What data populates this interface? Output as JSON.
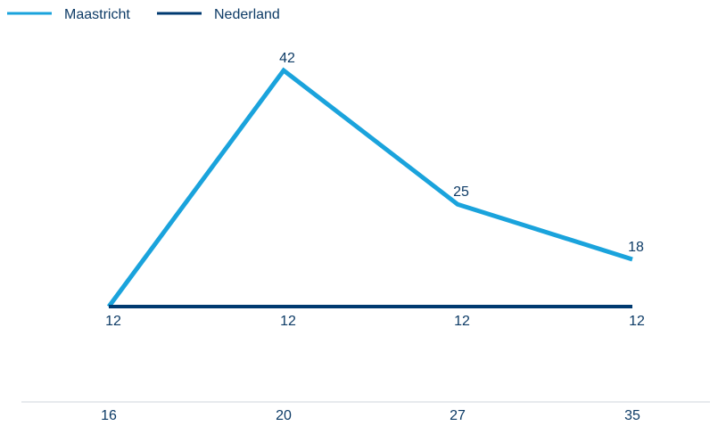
{
  "chart_data": {
    "type": "line",
    "x": [
      "16",
      "20",
      "27",
      "35"
    ],
    "series": [
      {
        "name": "Maastricht",
        "values": [
          12,
          42,
          25,
          18
        ],
        "color": "#1aa3dc",
        "labels": [
          "",
          "42",
          "25",
          "18"
        ]
      },
      {
        "name": "Nederland",
        "values": [
          12,
          12,
          12,
          12
        ],
        "color": "#003a70",
        "labels": [
          "12",
          "12",
          "12",
          "12"
        ]
      }
    ],
    "title": "",
    "xlabel": "",
    "ylabel": "",
    "ylim": [
      12,
      42
    ],
    "grid": false,
    "legend_position": "top-left",
    "axis_color": "#cfd6dc",
    "text_color": "#0d3b66"
  }
}
